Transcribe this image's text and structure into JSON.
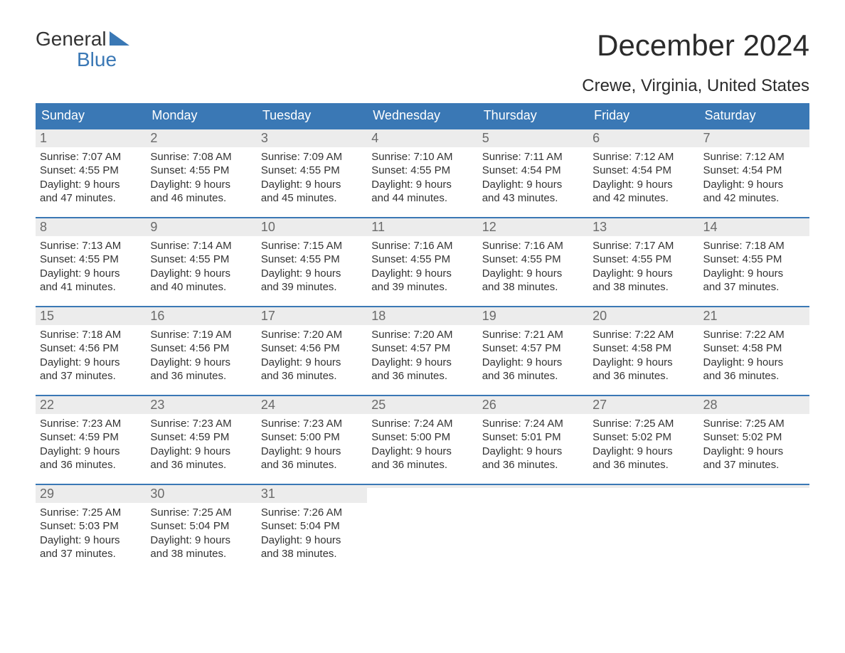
{
  "logo": {
    "text_a": "General",
    "text_b": "Blue",
    "tri_color": "#3a78b5"
  },
  "title": "December 2024",
  "location": "Crewe, Virginia, United States",
  "colors": {
    "header_bg": "#3a78b5",
    "header_text": "#ffffff",
    "daynum_bg": "#ececec",
    "daynum_text": "#6a6a6a",
    "body_text": "#333333",
    "row_border": "#3a78b5",
    "page_bg": "#ffffff"
  },
  "typography": {
    "title_fontsize": 42,
    "location_fontsize": 24,
    "weekday_fontsize": 18,
    "daynum_fontsize": 18,
    "body_fontsize": 15
  },
  "weekdays": [
    "Sunday",
    "Monday",
    "Tuesday",
    "Wednesday",
    "Thursday",
    "Friday",
    "Saturday"
  ],
  "weeks": [
    [
      {
        "n": "1",
        "sr": "Sunrise: 7:07 AM",
        "ss": "Sunset: 4:55 PM",
        "d1": "Daylight: 9 hours",
        "d2": "and 47 minutes."
      },
      {
        "n": "2",
        "sr": "Sunrise: 7:08 AM",
        "ss": "Sunset: 4:55 PM",
        "d1": "Daylight: 9 hours",
        "d2": "and 46 minutes."
      },
      {
        "n": "3",
        "sr": "Sunrise: 7:09 AM",
        "ss": "Sunset: 4:55 PM",
        "d1": "Daylight: 9 hours",
        "d2": "and 45 minutes."
      },
      {
        "n": "4",
        "sr": "Sunrise: 7:10 AM",
        "ss": "Sunset: 4:55 PM",
        "d1": "Daylight: 9 hours",
        "d2": "and 44 minutes."
      },
      {
        "n": "5",
        "sr": "Sunrise: 7:11 AM",
        "ss": "Sunset: 4:54 PM",
        "d1": "Daylight: 9 hours",
        "d2": "and 43 minutes."
      },
      {
        "n": "6",
        "sr": "Sunrise: 7:12 AM",
        "ss": "Sunset: 4:54 PM",
        "d1": "Daylight: 9 hours",
        "d2": "and 42 minutes."
      },
      {
        "n": "7",
        "sr": "Sunrise: 7:12 AM",
        "ss": "Sunset: 4:54 PM",
        "d1": "Daylight: 9 hours",
        "d2": "and 42 minutes."
      }
    ],
    [
      {
        "n": "8",
        "sr": "Sunrise: 7:13 AM",
        "ss": "Sunset: 4:55 PM",
        "d1": "Daylight: 9 hours",
        "d2": "and 41 minutes."
      },
      {
        "n": "9",
        "sr": "Sunrise: 7:14 AM",
        "ss": "Sunset: 4:55 PM",
        "d1": "Daylight: 9 hours",
        "d2": "and 40 minutes."
      },
      {
        "n": "10",
        "sr": "Sunrise: 7:15 AM",
        "ss": "Sunset: 4:55 PM",
        "d1": "Daylight: 9 hours",
        "d2": "and 39 minutes."
      },
      {
        "n": "11",
        "sr": "Sunrise: 7:16 AM",
        "ss": "Sunset: 4:55 PM",
        "d1": "Daylight: 9 hours",
        "d2": "and 39 minutes."
      },
      {
        "n": "12",
        "sr": "Sunrise: 7:16 AM",
        "ss": "Sunset: 4:55 PM",
        "d1": "Daylight: 9 hours",
        "d2": "and 38 minutes."
      },
      {
        "n": "13",
        "sr": "Sunrise: 7:17 AM",
        "ss": "Sunset: 4:55 PM",
        "d1": "Daylight: 9 hours",
        "d2": "and 38 minutes."
      },
      {
        "n": "14",
        "sr": "Sunrise: 7:18 AM",
        "ss": "Sunset: 4:55 PM",
        "d1": "Daylight: 9 hours",
        "d2": "and 37 minutes."
      }
    ],
    [
      {
        "n": "15",
        "sr": "Sunrise: 7:18 AM",
        "ss": "Sunset: 4:56 PM",
        "d1": "Daylight: 9 hours",
        "d2": "and 37 minutes."
      },
      {
        "n": "16",
        "sr": "Sunrise: 7:19 AM",
        "ss": "Sunset: 4:56 PM",
        "d1": "Daylight: 9 hours",
        "d2": "and 36 minutes."
      },
      {
        "n": "17",
        "sr": "Sunrise: 7:20 AM",
        "ss": "Sunset: 4:56 PM",
        "d1": "Daylight: 9 hours",
        "d2": "and 36 minutes."
      },
      {
        "n": "18",
        "sr": "Sunrise: 7:20 AM",
        "ss": "Sunset: 4:57 PM",
        "d1": "Daylight: 9 hours",
        "d2": "and 36 minutes."
      },
      {
        "n": "19",
        "sr": "Sunrise: 7:21 AM",
        "ss": "Sunset: 4:57 PM",
        "d1": "Daylight: 9 hours",
        "d2": "and 36 minutes."
      },
      {
        "n": "20",
        "sr": "Sunrise: 7:22 AM",
        "ss": "Sunset: 4:58 PM",
        "d1": "Daylight: 9 hours",
        "d2": "and 36 minutes."
      },
      {
        "n": "21",
        "sr": "Sunrise: 7:22 AM",
        "ss": "Sunset: 4:58 PM",
        "d1": "Daylight: 9 hours",
        "d2": "and 36 minutes."
      }
    ],
    [
      {
        "n": "22",
        "sr": "Sunrise: 7:23 AM",
        "ss": "Sunset: 4:59 PM",
        "d1": "Daylight: 9 hours",
        "d2": "and 36 minutes."
      },
      {
        "n": "23",
        "sr": "Sunrise: 7:23 AM",
        "ss": "Sunset: 4:59 PM",
        "d1": "Daylight: 9 hours",
        "d2": "and 36 minutes."
      },
      {
        "n": "24",
        "sr": "Sunrise: 7:23 AM",
        "ss": "Sunset: 5:00 PM",
        "d1": "Daylight: 9 hours",
        "d2": "and 36 minutes."
      },
      {
        "n": "25",
        "sr": "Sunrise: 7:24 AM",
        "ss": "Sunset: 5:00 PM",
        "d1": "Daylight: 9 hours",
        "d2": "and 36 minutes."
      },
      {
        "n": "26",
        "sr": "Sunrise: 7:24 AM",
        "ss": "Sunset: 5:01 PM",
        "d1": "Daylight: 9 hours",
        "d2": "and 36 minutes."
      },
      {
        "n": "27",
        "sr": "Sunrise: 7:25 AM",
        "ss": "Sunset: 5:02 PM",
        "d1": "Daylight: 9 hours",
        "d2": "and 36 minutes."
      },
      {
        "n": "28",
        "sr": "Sunrise: 7:25 AM",
        "ss": "Sunset: 5:02 PM",
        "d1": "Daylight: 9 hours",
        "d2": "and 37 minutes."
      }
    ],
    [
      {
        "n": "29",
        "sr": "Sunrise: 7:25 AM",
        "ss": "Sunset: 5:03 PM",
        "d1": "Daylight: 9 hours",
        "d2": "and 37 minutes."
      },
      {
        "n": "30",
        "sr": "Sunrise: 7:25 AM",
        "ss": "Sunset: 5:04 PM",
        "d1": "Daylight: 9 hours",
        "d2": "and 38 minutes."
      },
      {
        "n": "31",
        "sr": "Sunrise: 7:26 AM",
        "ss": "Sunset: 5:04 PM",
        "d1": "Daylight: 9 hours",
        "d2": "and 38 minutes."
      },
      null,
      null,
      null,
      null
    ]
  ]
}
